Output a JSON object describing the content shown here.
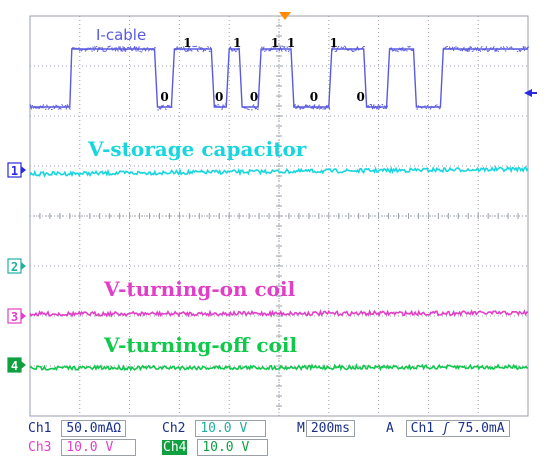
{
  "colors": {
    "ch1": "#19d6de",
    "ch2": "#1fb0a0",
    "ch3": "#e040c8",
    "ch4": "#10c84a",
    "math": "#5a5ae0",
    "label_navy": "#1a2f8a",
    "grid": "#9aa0a8",
    "trigger": "#ff8c00"
  },
  "icons": {
    "trigger_top": "triangle-down-orange",
    "ref_right": "arrow-left-blue"
  },
  "chart_data": {
    "type": "line",
    "grid": true,
    "divisions": {
      "x": 10,
      "y": 8
    },
    "title": "",
    "xlabel": "",
    "ylabel": "",
    "series": [
      {
        "name": "I-cable",
        "color_key": "math",
        "levels": {
          "low": 0,
          "high": 1
        },
        "x": [
          0,
          0.4,
          0.42,
          1.25,
          1.28,
          1.42,
          1.45,
          1.82,
          1.85,
          1.97,
          2.0,
          2.1,
          2.13,
          2.29,
          2.32,
          2.62,
          2.65,
          3.0,
          3.03,
          3.35,
          3.38,
          3.58,
          3.61,
          3.85,
          3.88,
          4.12,
          4.15,
          4.95,
          5.0
        ],
        "values": [
          0,
          0,
          1,
          1,
          0,
          0,
          1,
          1,
          0,
          0,
          1,
          1,
          0,
          0,
          1,
          1,
          0,
          0,
          1,
          1,
          0,
          0,
          1,
          1,
          0,
          0,
          1,
          1,
          1
        ],
        "bit_labels": [
          {
            "text": "0",
            "x": 1.35
          },
          {
            "text": "1",
            "x": 1.58
          },
          {
            "text": "0",
            "x": 1.9
          },
          {
            "text": "1",
            "x": 2.08
          },
          {
            "text": "0",
            "x": 2.25
          },
          {
            "text": "1",
            "x": 2.46
          },
          {
            "text": "1",
            "x": 2.62
          },
          {
            "text": "0",
            "x": 2.85
          },
          {
            "text": "1",
            "x": 3.05
          },
          {
            "text": "0",
            "x": 3.32
          }
        ]
      },
      {
        "name": "V-storage capacitor",
        "color_key": "ch1",
        "level": 0,
        "trend": 0.08
      },
      {
        "name": "V-turning-on coil",
        "color_key": "ch3",
        "level": 0,
        "trend": 0
      },
      {
        "name": "V-turning-off coil",
        "color_key": "ch4",
        "level": 0,
        "trend": 0
      }
    ],
    "markers": [
      "1",
      "2",
      "3",
      "4"
    ]
  },
  "readouts": {
    "ch1_name": "Ch1",
    "ch1_scale": "50.0mAΩ",
    "ch2_name": "Ch2",
    "ch2_scale": "10.0 V",
    "ch3_name": "Ch3",
    "ch3_scale": "10.0 V",
    "ch4_name": "Ch4",
    "ch4_scale": "10.0 V",
    "m_label": "M",
    "timebase": "200ms",
    "acq_mode": "A",
    "trig_source": "Ch1",
    "trig_slope": "ʃ",
    "trig_level": "75.0mA"
  }
}
